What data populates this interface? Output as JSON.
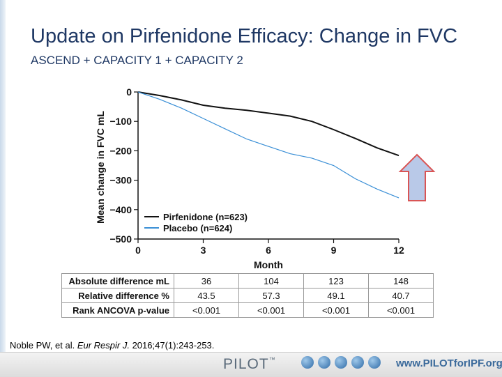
{
  "slide": {
    "title": "Update on Pirfenidone Efficacy: Change in FVC",
    "subtitle": "ASCEND + CAPACITY 1 + CAPACITY 2",
    "citation_prefix": "Noble PW, et al. ",
    "citation_journal": "Eur Respir J.",
    "citation_suffix": " 2016;47(1):243-253."
  },
  "chart_data": {
    "type": "line",
    "xlabel": "Month",
    "ylabel": "Mean change in FVC mL",
    "xlim": [
      0,
      12
    ],
    "ylim": [
      -500,
      0
    ],
    "xticks": [
      0,
      3,
      6,
      9,
      12
    ],
    "yticks": [
      0,
      -100,
      -200,
      -300,
      -400,
      -500
    ],
    "ytick_labels": [
      "0",
      "−100",
      "−200",
      "−300",
      "−400",
      "−500"
    ],
    "legend_position": "bottom-left",
    "series": [
      {
        "name": "Pirfenidone (n=623)",
        "color": "#111111",
        "x": [
          0,
          1,
          2,
          3,
          4,
          5,
          6,
          7,
          8,
          9,
          10,
          11,
          12
        ],
        "y": [
          0,
          -12,
          -27,
          -45,
          -55,
          -62,
          -72,
          -82,
          -100,
          -128,
          -158,
          -190,
          -216
        ]
      },
      {
        "name": "Placebo (n=624)",
        "color": "#3a8fd6",
        "x": [
          0,
          1,
          2,
          3,
          4,
          5,
          6,
          7,
          8,
          9,
          10,
          11,
          12
        ],
        "y": [
          0,
          -25,
          -55,
          -90,
          -125,
          -160,
          -185,
          -210,
          -225,
          -250,
          -295,
          -330,
          -360
        ]
      }
    ],
    "annotation": "up-arrow-icon"
  },
  "table": {
    "rows": [
      {
        "label": "Absolute difference mL",
        "values": [
          "36",
          "104",
          "123",
          "148"
        ]
      },
      {
        "label": "Relative difference %",
        "values": [
          "43.5",
          "57.3",
          "49.1",
          "40.7"
        ]
      },
      {
        "label": "Rank ANCOVA p-value",
        "values": [
          "<0.001",
          "<0.001",
          "<0.001",
          "<0.001"
        ]
      }
    ]
  },
  "footer": {
    "logo_text": "PILOT",
    "logo_tm": "™",
    "url": "www.PILOTforIPF.org",
    "logo_icons": [
      "lung-icon",
      "lung-icon",
      "lung-icon",
      "lung-icon",
      "lung-icon"
    ]
  }
}
